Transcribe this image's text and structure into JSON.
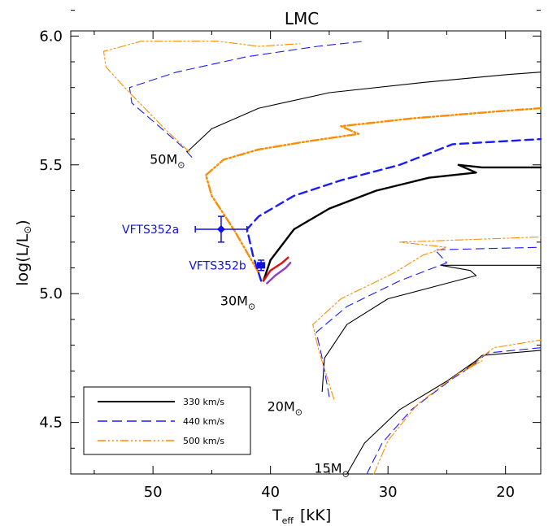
{
  "chart_data": {
    "type": "line",
    "title": "LMC",
    "xlabel_main": "T",
    "xlabel_sub": "eff",
    "xlabel_unit": "[kK]",
    "ylabel_main": "log(L/L",
    "ylabel_sun": "⊙",
    "ylabel_close": ")",
    "xlim": [
      57,
      17
    ],
    "ylim": [
      4.3,
      6.02
    ],
    "x_ticks": [
      50,
      40,
      30,
      20
    ],
    "y_ticks": [
      4.5,
      5.0,
      5.5,
      6.0
    ],
    "x_tick_labels": [
      "50",
      "40",
      "30",
      "20"
    ],
    "y_tick_labels": [
      "4.5",
      "5.0",
      "5.5",
      "6.0"
    ],
    "legend_position": "bottom-left",
    "legend": [
      {
        "label": "330 km/s",
        "color": "#000000",
        "style": "solid"
      },
      {
        "label": "440 km/s",
        "color": "#1a1aff",
        "style": "dashed"
      },
      {
        "label": "500 km/s",
        "color": "#ff8c00",
        "style": "dashdotdot"
      }
    ],
    "mass_labels": [
      {
        "text": "50M",
        "sun": "⊙",
        "x": 47.0,
        "y": 5.53
      },
      {
        "text": "30M",
        "sun": "⊙",
        "x": 41.0,
        "y": 4.98
      },
      {
        "text": "20M",
        "sun": "⊙",
        "x": 37.0,
        "y": 4.57
      },
      {
        "text": "15M",
        "sun": "⊙",
        "x": 33.0,
        "y": 4.33
      }
    ],
    "stars": [
      {
        "name": "VFTS352a",
        "teff": 44.2,
        "logL": 5.25,
        "xerr": 2.2,
        "yerr": 0.05
      },
      {
        "name": "VFTS352b",
        "teff": 40.8,
        "logL": 5.11,
        "xerr": 0.3,
        "yerr": 0.02
      }
    ],
    "series": [
      {
        "group": "m50",
        "style": "solid",
        "color": "#000000",
        "x": [
          47.1,
          45.0,
          41.0,
          35.0,
          27.0,
          20.0,
          17.0
        ],
        "y": [
          5.55,
          5.64,
          5.72,
          5.78,
          5.82,
          5.85,
          5.86
        ]
      },
      {
        "group": "m50",
        "style": "dashed",
        "color": "#1a1aff",
        "x": [
          46.7,
          47.5,
          49.5,
          51.8,
          52.0,
          48.0,
          42.0,
          36.0,
          32.0
        ],
        "y": [
          5.53,
          5.57,
          5.65,
          5.74,
          5.8,
          5.86,
          5.92,
          5.96,
          5.98
        ]
      },
      {
        "group": "m50",
        "style": "dashdotdot",
        "color": "#ff8c00",
        "x": [
          46.9,
          49.0,
          52.0,
          54.0,
          54.2,
          51.0,
          44.5,
          41.0,
          37.5
        ],
        "y": [
          5.55,
          5.64,
          5.78,
          5.88,
          5.94,
          5.98,
          5.98,
          5.96,
          5.97
        ]
      },
      {
        "group": "m40",
        "style": "dashdotdot",
        "color": "#ff8c00",
        "x": [
          41.0,
          42.0,
          43.0,
          44.0,
          45.0,
          45.5,
          44.0,
          41.0,
          37.0,
          34.0,
          32.5,
          34.0,
          32.0,
          28.0,
          20.0,
          17.0
        ],
        "y": [
          5.08,
          5.16,
          5.24,
          5.31,
          5.38,
          5.46,
          5.52,
          5.56,
          5.59,
          5.61,
          5.62,
          5.65,
          5.66,
          5.68,
          5.71,
          5.72
        ]
      },
      {
        "group": "m40",
        "style": "dashed",
        "color": "#1a1aff",
        "x": [
          40.8,
          41.5,
          42.0,
          41.0,
          38.0,
          34.0,
          29.0,
          24.5,
          17.0
        ],
        "y": [
          5.05,
          5.15,
          5.25,
          5.3,
          5.38,
          5.44,
          5.5,
          5.58,
          5.6
        ]
      },
      {
        "group": "m40",
        "style": "solid",
        "color": "#000000",
        "x": [
          40.6,
          40.0,
          38.0,
          35.0,
          31.0,
          26.5,
          22.5,
          24.0,
          22.0,
          17.0
        ],
        "y": [
          5.05,
          5.13,
          5.25,
          5.33,
          5.4,
          5.45,
          5.47,
          5.5,
          5.49,
          5.49
        ]
      },
      {
        "group": "m30",
        "style": "solid",
        "color": "#e01010",
        "x": [
          40.6,
          40.0,
          39.0,
          38.5
        ],
        "y": [
          5.05,
          5.09,
          5.12,
          5.14
        ]
      },
      {
        "group": "m30",
        "style": "solid",
        "color": "#9040c0",
        "x": [
          40.3,
          39.6,
          38.7,
          38.3
        ],
        "y": [
          5.04,
          5.07,
          5.1,
          5.12
        ]
      },
      {
        "group": "m25",
        "style": "solid",
        "color": "#000000",
        "x": [
          35.6,
          35.4,
          33.5,
          30.0,
          25.0,
          22.5,
          23.0,
          25.5,
          17.0
        ],
        "y": [
          4.62,
          4.75,
          4.88,
          4.98,
          5.04,
          5.07,
          5.09,
          5.11,
          5.11
        ]
      },
      {
        "group": "m25",
        "style": "dashed",
        "color": "#1a1aff",
        "x": [
          35.0,
          35.6,
          36.1,
          33.5,
          29.0,
          25.0,
          26.0,
          17.0
        ],
        "y": [
          4.6,
          4.75,
          4.85,
          4.95,
          5.05,
          5.12,
          5.17,
          5.18
        ]
      },
      {
        "group": "m25",
        "style": "dashdotdot",
        "color": "#ff8c00",
        "x": [
          34.6,
          35.9,
          36.4,
          34.0,
          29.5,
          27.0,
          25.0,
          29.0,
          17.0
        ],
        "y": [
          4.59,
          4.78,
          4.88,
          4.98,
          5.08,
          5.15,
          5.18,
          5.2,
          5.22
        ]
      },
      {
        "group": "m15",
        "style": "solid",
        "color": "#000000",
        "x": [
          33.5,
          32.0,
          29.0,
          25.0,
          22.5,
          23.5,
          22.0,
          17.0
        ],
        "y": [
          4.3,
          4.42,
          4.55,
          4.66,
          4.74,
          4.7,
          4.76,
          4.78
        ]
      },
      {
        "group": "m15",
        "style": "dashed",
        "color": "#1a1aff",
        "x": [
          31.8,
          30.5,
          28.0,
          24.5,
          22.5,
          23.5,
          21.5,
          17.0
        ],
        "y": [
          4.3,
          4.42,
          4.55,
          4.67,
          4.73,
          4.7,
          4.77,
          4.79
        ]
      },
      {
        "group": "m15",
        "style": "dashdotdot",
        "color": "#ff8c00",
        "x": [
          31.2,
          30.0,
          27.5,
          24.0,
          22.0,
          23.5,
          21.0,
          17.0
        ],
        "y": [
          4.3,
          4.43,
          4.57,
          4.69,
          4.74,
          4.7,
          4.79,
          4.82
        ]
      }
    ]
  }
}
